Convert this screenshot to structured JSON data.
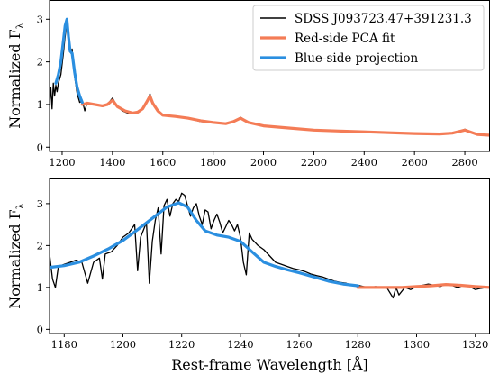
{
  "chart_data": [
    {
      "type": "line",
      "panel": "top",
      "title": "",
      "xlabel": "",
      "ylabel": "Normalized F",
      "ylabel_subscript": "λ",
      "xlim": [
        1150,
        2900
      ],
      "ylim": [
        -0.1,
        3.45
      ],
      "xticks": [
        1200,
        1400,
        1600,
        1800,
        2000,
        2200,
        2400,
        2600,
        2800
      ],
      "yticks": [
        0,
        1,
        2,
        3
      ],
      "grid": false,
      "legend_position": "top-right",
      "series": [
        {
          "name": "SDSS J093723.47+391231.3",
          "color": "#000000",
          "x": [
            1150,
            1155,
            1160,
            1165,
            1170,
            1175,
            1180,
            1185,
            1190,
            1195,
            1200,
            1205,
            1210,
            1215,
            1220,
            1225,
            1230,
            1235,
            1240,
            1245,
            1250,
            1260,
            1270,
            1280,
            1290,
            1300,
            1320,
            1340,
            1360,
            1380,
            1400,
            1420,
            1440,
            1460,
            1480,
            1500,
            1520,
            1535,
            1549,
            1560,
            1580,
            1600,
            1650,
            1700,
            1750,
            1800,
            1850,
            1880,
            1909,
            1940,
            2000,
            2100,
            2200,
            2300,
            2400,
            2500,
            2600,
            2700,
            2750,
            2800,
            2850,
            2900
          ],
          "y": [
            1.0,
            1.4,
            0.9,
            1.5,
            1.2,
            1.45,
            1.3,
            1.5,
            1.6,
            1.7,
            1.95,
            2.2,
            2.5,
            2.75,
            3.0,
            2.7,
            2.4,
            2.2,
            2.3,
            1.9,
            1.65,
            1.25,
            1.05,
            1.1,
            0.85,
            1.05,
            1.0,
            1.0,
            0.95,
            1.0,
            1.15,
            0.95,
            0.85,
            0.8,
            0.8,
            0.82,
            0.9,
            1.05,
            1.25,
            1.05,
            0.85,
            0.75,
            0.72,
            0.68,
            0.6,
            0.58,
            0.55,
            0.6,
            0.7,
            0.58,
            0.5,
            0.45,
            0.4,
            0.38,
            0.36,
            0.34,
            0.32,
            0.3,
            0.33,
            0.42,
            0.3,
            0.28
          ]
        },
        {
          "name": "Red-side PCA fit",
          "color": "#f47c56",
          "x": [
            1280,
            1300,
            1330,
            1360,
            1380,
            1400,
            1420,
            1450,
            1480,
            1500,
            1520,
            1535,
            1549,
            1560,
            1580,
            1600,
            1650,
            1700,
            1750,
            1800,
            1850,
            1880,
            1909,
            1940,
            2000,
            2100,
            2200,
            2300,
            2400,
            2500,
            2600,
            2700,
            2750,
            2800,
            2850,
            2900
          ],
          "y": [
            1.0,
            1.03,
            1.0,
            0.97,
            1.0,
            1.1,
            0.95,
            0.85,
            0.8,
            0.82,
            0.9,
            1.05,
            1.2,
            1.03,
            0.85,
            0.75,
            0.72,
            0.68,
            0.62,
            0.58,
            0.55,
            0.6,
            0.68,
            0.58,
            0.5,
            0.45,
            0.4,
            0.38,
            0.36,
            0.34,
            0.32,
            0.31,
            0.33,
            0.4,
            0.3,
            0.28
          ]
        },
        {
          "name": "Blue-side projection",
          "color": "#2b8fe0",
          "x": [
            1175,
            1185,
            1195,
            1205,
            1212,
            1219,
            1225,
            1232,
            1240,
            1250,
            1260,
            1270,
            1280
          ],
          "y": [
            1.5,
            1.7,
            2.0,
            2.5,
            2.85,
            3.0,
            2.6,
            2.25,
            2.2,
            1.75,
            1.4,
            1.2,
            1.05
          ]
        }
      ]
    },
    {
      "type": "line",
      "panel": "bottom",
      "title": "",
      "xlabel": "Rest-frame Wavelength [Å]",
      "ylabel": "Normalized F",
      "ylabel_subscript": "λ",
      "xlim": [
        1175,
        1325
      ],
      "ylim": [
        -0.1,
        3.6
      ],
      "xticks": [
        1180,
        1200,
        1220,
        1240,
        1260,
        1280,
        1300,
        1320
      ],
      "yticks": [
        0,
        1,
        2,
        3
      ],
      "grid": false,
      "series": [
        {
          "name": "SDSS J093723.47+391231.3",
          "color": "#000000",
          "x": [
            1175,
            1176,
            1177,
            1178,
            1180,
            1182,
            1184,
            1186,
            1188,
            1190,
            1192,
            1193,
            1194,
            1196,
            1198,
            1200,
            1202,
            1204,
            1205,
            1206,
            1208,
            1209,
            1210,
            1211,
            1212,
            1213,
            1214,
            1215,
            1216,
            1217,
            1218,
            1219,
            1220,
            1221,
            1222,
            1223,
            1224,
            1225,
            1226,
            1227,
            1228,
            1229,
            1230,
            1231,
            1232,
            1233,
            1234,
            1235,
            1236,
            1237,
            1238,
            1239,
            1240,
            1241,
            1242,
            1243,
            1244,
            1246,
            1248,
            1250,
            1252,
            1254,
            1256,
            1258,
            1260,
            1262,
            1264,
            1266,
            1268,
            1270,
            1272,
            1274,
            1276,
            1278,
            1280,
            1282,
            1284,
            1286,
            1288,
            1290,
            1292,
            1293,
            1294,
            1296,
            1298,
            1300,
            1302,
            1304,
            1306,
            1308,
            1310,
            1312,
            1314,
            1316,
            1318,
            1320,
            1322,
            1324,
            1325
          ],
          "y": [
            1.8,
            1.2,
            1.0,
            1.5,
            1.55,
            1.6,
            1.65,
            1.6,
            1.1,
            1.6,
            1.7,
            1.2,
            1.8,
            1.85,
            2.0,
            2.2,
            2.3,
            2.5,
            1.4,
            2.2,
            2.55,
            1.1,
            2.1,
            2.6,
            2.9,
            1.8,
            2.95,
            3.1,
            2.7,
            3.0,
            3.1,
            3.05,
            3.25,
            3.2,
            2.95,
            2.7,
            2.9,
            3.0,
            2.7,
            2.5,
            2.85,
            2.8,
            2.4,
            2.6,
            2.75,
            2.55,
            2.3,
            2.45,
            2.6,
            2.5,
            2.35,
            2.5,
            2.2,
            1.6,
            1.3,
            2.3,
            2.15,
            2.0,
            1.9,
            1.75,
            1.6,
            1.55,
            1.5,
            1.45,
            1.42,
            1.38,
            1.32,
            1.28,
            1.25,
            1.2,
            1.15,
            1.12,
            1.1,
            1.05,
            1.05,
            1.02,
            1.0,
            1.02,
            1.0,
            0.98,
            0.75,
            1.0,
            0.82,
            1.0,
            0.95,
            1.02,
            1.05,
            1.08,
            1.05,
            1.02,
            1.08,
            1.05,
            1.0,
            1.05,
            1.02,
            0.95,
            0.98,
            1.0,
            1.02
          ]
        },
        {
          "name": "Red-side PCA fit",
          "color": "#f47c56",
          "x": [
            1280,
            1285,
            1290,
            1295,
            1300,
            1305,
            1310,
            1315,
            1320,
            1325
          ],
          "y": [
            1.0,
            1.0,
            1.0,
            1.0,
            1.02,
            1.04,
            1.07,
            1.05,
            1.02,
            1.0
          ]
        },
        {
          "name": "Blue-side projection",
          "color": "#2b8fe0",
          "x": [
            1175,
            1180,
            1185,
            1190,
            1195,
            1200,
            1205,
            1210,
            1215,
            1219,
            1222,
            1225,
            1228,
            1232,
            1236,
            1240,
            1244,
            1248,
            1252,
            1256,
            1260,
            1265,
            1270,
            1275,
            1280
          ],
          "y": [
            1.48,
            1.52,
            1.6,
            1.75,
            1.92,
            2.12,
            2.38,
            2.65,
            2.92,
            3.02,
            2.92,
            2.6,
            2.35,
            2.25,
            2.2,
            2.1,
            1.85,
            1.6,
            1.5,
            1.42,
            1.35,
            1.25,
            1.15,
            1.08,
            1.04
          ]
        }
      ]
    }
  ]
}
